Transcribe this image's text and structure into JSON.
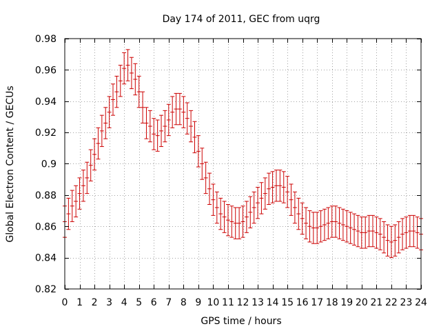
{
  "chart_data": {
    "type": "scatter",
    "title": "Day 174 of 2011, GEC from uqrg",
    "xlabel": "GPS time / hours",
    "ylabel": "Global Electron Content / GECUs",
    "xlim": [
      0,
      24
    ],
    "ylim": [
      0.82,
      0.98
    ],
    "xticks": [
      0,
      1,
      2,
      3,
      4,
      5,
      6,
      7,
      8,
      9,
      10,
      11,
      12,
      13,
      14,
      15,
      16,
      17,
      18,
      19,
      20,
      21,
      22,
      23,
      24
    ],
    "yticks": [
      0.82,
      0.84,
      0.86,
      0.88,
      0.9,
      0.92,
      0.94,
      0.96,
      0.98
    ],
    "ytick_labels": [
      "0.82",
      "0.84",
      "0.86",
      "0.88",
      "0.9",
      "0.92",
      "0.94",
      "0.96",
      "0.98"
    ],
    "grid": true,
    "color": "#cc0000",
    "error_bars": true,
    "series": [
      {
        "x": [
          0,
          0.25,
          0.5,
          0.75,
          1,
          1.25,
          1.5,
          1.75,
          2,
          2.25,
          2.5,
          2.75,
          3,
          3.25,
          3.5,
          3.75,
          4,
          4.25,
          4.5,
          4.75,
          5,
          5.25,
          5.5,
          5.75,
          6,
          6.25,
          6.5,
          6.75,
          7,
          7.25,
          7.5,
          7.75,
          8,
          8.25,
          8.5,
          8.75,
          9,
          9.25,
          9.5,
          9.75,
          10,
          10.25,
          10.5,
          10.75,
          11,
          11.25,
          11.5,
          11.75,
          12,
          12.25,
          12.5,
          12.75,
          13,
          13.25,
          13.5,
          13.75,
          14,
          14.25,
          14.5,
          14.75,
          15,
          15.25,
          15.5,
          15.75,
          16,
          16.25,
          16.5,
          16.75,
          17,
          17.25,
          17.5,
          17.75,
          18,
          18.25,
          18.5,
          18.75,
          19,
          19.25,
          19.5,
          19.75,
          20,
          20.25,
          20.5,
          20.75,
          21,
          21.25,
          21.5,
          21.75,
          22,
          22.25,
          22.5,
          22.75,
          23,
          23.25,
          23.5,
          23.75,
          24
        ],
        "y": [
          0.863,
          0.868,
          0.873,
          0.876,
          0.881,
          0.886,
          0.891,
          0.899,
          0.906,
          0.913,
          0.921,
          0.926,
          0.933,
          0.941,
          0.946,
          0.953,
          0.961,
          0.963,
          0.958,
          0.954,
          0.946,
          0.936,
          0.926,
          0.924,
          0.919,
          0.918,
          0.921,
          0.924,
          0.928,
          0.933,
          0.935,
          0.935,
          0.933,
          0.929,
          0.924,
          0.917,
          0.908,
          0.9,
          0.891,
          0.884,
          0.877,
          0.872,
          0.868,
          0.866,
          0.864,
          0.863,
          0.862,
          0.862,
          0.863,
          0.866,
          0.869,
          0.872,
          0.875,
          0.878,
          0.881,
          0.884,
          0.885,
          0.886,
          0.886,
          0.885,
          0.882,
          0.877,
          0.872,
          0.868,
          0.865,
          0.862,
          0.86,
          0.859,
          0.859,
          0.86,
          0.861,
          0.862,
          0.863,
          0.863,
          0.862,
          0.861,
          0.86,
          0.859,
          0.858,
          0.857,
          0.856,
          0.856,
          0.857,
          0.857,
          0.856,
          0.855,
          0.853,
          0.851,
          0.85,
          0.851,
          0.853,
          0.855,
          0.856,
          0.857,
          0.857,
          0.856,
          0.855
        ],
        "error": [
          0.01,
          0.01,
          0.01,
          0.01,
          0.01,
          0.01,
          0.01,
          0.01,
          0.01,
          0.01,
          0.01,
          0.01,
          0.01,
          0.01,
          0.01,
          0.01,
          0.01,
          0.01,
          0.01,
          0.01,
          0.01,
          0.01,
          0.01,
          0.01,
          0.01,
          0.01,
          0.01,
          0.01,
          0.01,
          0.01,
          0.01,
          0.01,
          0.01,
          0.01,
          0.01,
          0.01,
          0.01,
          0.01,
          0.01,
          0.01,
          0.01,
          0.01,
          0.01,
          0.01,
          0.01,
          0.01,
          0.01,
          0.01,
          0.01,
          0.01,
          0.01,
          0.01,
          0.01,
          0.01,
          0.01,
          0.01,
          0.01,
          0.01,
          0.01,
          0.01,
          0.01,
          0.01,
          0.01,
          0.01,
          0.01,
          0.01,
          0.01,
          0.01,
          0.01,
          0.01,
          0.01,
          0.01,
          0.01,
          0.01,
          0.01,
          0.01,
          0.01,
          0.01,
          0.01,
          0.01,
          0.01,
          0.01,
          0.01,
          0.01,
          0.01,
          0.01,
          0.01,
          0.01,
          0.01,
          0.01,
          0.01,
          0.01,
          0.01,
          0.01,
          0.01,
          0.01,
          0.01
        ]
      }
    ]
  }
}
